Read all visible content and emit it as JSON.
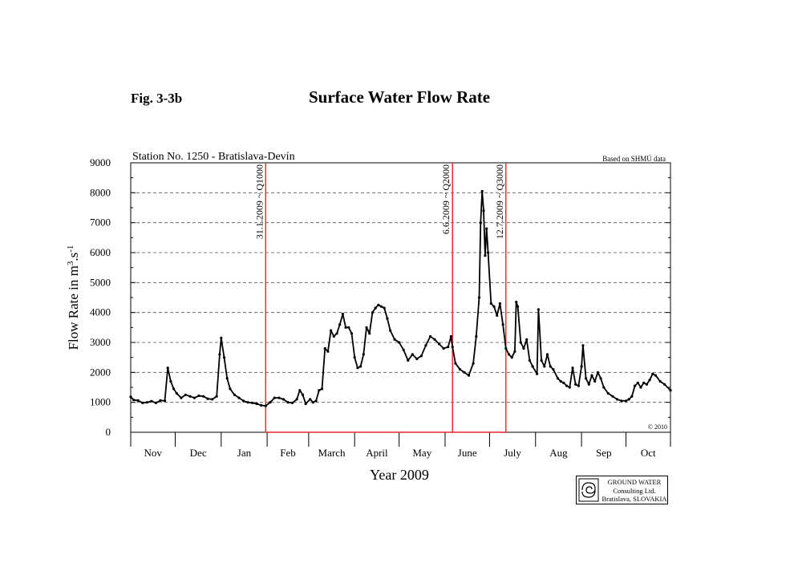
{
  "figure": {
    "label": "Fig. 3-3b",
    "title": "Surface Water Flow Rate"
  },
  "logo": {
    "line1": "GROUND WATER",
    "line2": "Consulting Ltd.",
    "line3": "Bratislava, SLOVAKIA"
  },
  "chart_data": {
    "type": "line",
    "title": "Station No. 1250 - Bratislava-Devín",
    "source_note": "Based on SHMÚ data",
    "copyright": "© 2010",
    "xlabel": "Year 2009",
    "ylabel_parts": [
      "Flow Rate in m",
      "3",
      ".s",
      "-1"
    ],
    "ylim": [
      0,
      9000
    ],
    "yticks": [
      0,
      1000,
      2000,
      3000,
      4000,
      5000,
      6000,
      7000,
      8000,
      9000
    ],
    "x_range": [
      "2008-11-01",
      "2009-10-31"
    ],
    "months": [
      "Nov",
      "Dec",
      "Jan",
      "Feb",
      "March",
      "April",
      "May",
      "June",
      "July",
      "Aug",
      "Sep",
      "Oct"
    ],
    "grid": "horizontal dashed",
    "line_color": "#000000",
    "marker_line_color": "#e3262b",
    "event_lines": [
      {
        "date": "2009-01-31",
        "label": "31.1.2009 ~ Q1000"
      },
      {
        "date": "2009-06-06",
        "label": "6.6.2009 ~ Q2000"
      },
      {
        "date": "2009-07-12",
        "label": "12.7.2009 ~ Q3000"
      }
    ],
    "series": [
      {
        "points": [
          [
            "2008-11-01",
            1180
          ],
          [
            "2008-11-03",
            1080
          ],
          [
            "2008-11-06",
            1060
          ],
          [
            "2008-11-09",
            980
          ],
          [
            "2008-11-12",
            1000
          ],
          [
            "2008-11-15",
            1040
          ],
          [
            "2008-11-18",
            980
          ],
          [
            "2008-11-21",
            1060
          ],
          [
            "2008-11-24",
            1050
          ],
          [
            "2008-11-26",
            2150
          ],
          [
            "2008-11-28",
            1700
          ],
          [
            "2008-11-30",
            1450
          ],
          [
            "2008-12-02",
            1300
          ],
          [
            "2008-12-05",
            1150
          ],
          [
            "2008-12-08",
            1250
          ],
          [
            "2008-12-11",
            1200
          ],
          [
            "2008-12-14",
            1150
          ],
          [
            "2008-12-17",
            1220
          ],
          [
            "2008-12-20",
            1200
          ],
          [
            "2008-12-23",
            1120
          ],
          [
            "2008-12-26",
            1100
          ],
          [
            "2008-12-29",
            1200
          ],
          [
            "2008-12-31",
            2600
          ],
          [
            "2009-01-01",
            3150
          ],
          [
            "2009-01-03",
            2500
          ],
          [
            "2009-01-05",
            1800
          ],
          [
            "2009-01-07",
            1450
          ],
          [
            "2009-01-10",
            1250
          ],
          [
            "2009-01-13",
            1150
          ],
          [
            "2009-01-16",
            1050
          ],
          [
            "2009-01-19",
            1000
          ],
          [
            "2009-01-22",
            980
          ],
          [
            "2009-01-25",
            950
          ],
          [
            "2009-01-28",
            900
          ],
          [
            "2009-01-31",
            880
          ],
          [
            "2009-02-03",
            1000
          ],
          [
            "2009-02-06",
            1150
          ],
          [
            "2009-02-09",
            1150
          ],
          [
            "2009-02-12",
            1100
          ],
          [
            "2009-02-15",
            1000
          ],
          [
            "2009-02-18",
            980
          ],
          [
            "2009-02-21",
            1100
          ],
          [
            "2009-02-23",
            1400
          ],
          [
            "2009-02-25",
            1250
          ],
          [
            "2009-02-27",
            950
          ],
          [
            "2009-03-02",
            1100
          ],
          [
            "2009-03-04",
            1000
          ],
          [
            "2009-03-06",
            1050
          ],
          [
            "2009-03-08",
            1400
          ],
          [
            "2009-03-10",
            1450
          ],
          [
            "2009-03-12",
            2800
          ],
          [
            "2009-03-14",
            2700
          ],
          [
            "2009-03-16",
            3400
          ],
          [
            "2009-03-18",
            3200
          ],
          [
            "2009-03-20",
            3300
          ],
          [
            "2009-03-22",
            3600
          ],
          [
            "2009-03-24",
            3950
          ],
          [
            "2009-03-26",
            3500
          ],
          [
            "2009-03-28",
            3500
          ],
          [
            "2009-03-30",
            3300
          ],
          [
            "2009-04-01",
            2500
          ],
          [
            "2009-04-03",
            2150
          ],
          [
            "2009-04-05",
            2200
          ],
          [
            "2009-04-07",
            2600
          ],
          [
            "2009-04-09",
            3500
          ],
          [
            "2009-04-11",
            3300
          ],
          [
            "2009-04-13",
            4000
          ],
          [
            "2009-04-15",
            4150
          ],
          [
            "2009-04-17",
            4250
          ],
          [
            "2009-04-19",
            4200
          ],
          [
            "2009-04-21",
            4150
          ],
          [
            "2009-04-23",
            3800
          ],
          [
            "2009-04-25",
            3400
          ],
          [
            "2009-04-28",
            3100
          ],
          [
            "2009-05-01",
            3000
          ],
          [
            "2009-05-04",
            2750
          ],
          [
            "2009-05-07",
            2400
          ],
          [
            "2009-05-10",
            2600
          ],
          [
            "2009-05-13",
            2450
          ],
          [
            "2009-05-16",
            2550
          ],
          [
            "2009-05-19",
            2900
          ],
          [
            "2009-05-22",
            3200
          ],
          [
            "2009-05-25",
            3100
          ],
          [
            "2009-05-28",
            2950
          ],
          [
            "2009-05-31",
            2800
          ],
          [
            "2009-06-03",
            2850
          ],
          [
            "2009-06-05",
            3200
          ],
          [
            "2009-06-06",
            2850
          ],
          [
            "2009-06-08",
            2300
          ],
          [
            "2009-06-11",
            2100
          ],
          [
            "2009-06-14",
            2000
          ],
          [
            "2009-06-17",
            1900
          ],
          [
            "2009-06-20",
            2300
          ],
          [
            "2009-06-22",
            3200
          ],
          [
            "2009-06-24",
            4500
          ],
          [
            "2009-06-25",
            7000
          ],
          [
            "2009-06-26",
            8050
          ],
          [
            "2009-06-27",
            7400
          ],
          [
            "2009-06-28",
            5900
          ],
          [
            "2009-06-29",
            6800
          ],
          [
            "2009-06-30",
            6000
          ],
          [
            "2009-07-02",
            4300
          ],
          [
            "2009-07-04",
            4200
          ],
          [
            "2009-07-06",
            3900
          ],
          [
            "2009-07-08",
            4300
          ],
          [
            "2009-07-10",
            3600
          ],
          [
            "2009-07-12",
            2800
          ],
          [
            "2009-07-14",
            2600
          ],
          [
            "2009-07-16",
            2500
          ],
          [
            "2009-07-18",
            2700
          ],
          [
            "2009-07-19",
            4350
          ],
          [
            "2009-07-20",
            4200
          ],
          [
            "2009-07-22",
            3000
          ],
          [
            "2009-07-24",
            2800
          ],
          [
            "2009-07-26",
            3100
          ],
          [
            "2009-07-28",
            2400
          ],
          [
            "2009-07-30",
            2200
          ],
          [
            "2009-08-02",
            1950
          ],
          [
            "2009-08-03",
            4100
          ],
          [
            "2009-08-05",
            2400
          ],
          [
            "2009-08-07",
            2200
          ],
          [
            "2009-08-09",
            2600
          ],
          [
            "2009-08-11",
            2200
          ],
          [
            "2009-08-13",
            2100
          ],
          [
            "2009-08-16",
            1800
          ],
          [
            "2009-08-18",
            1700
          ],
          [
            "2009-08-20",
            1650
          ],
          [
            "2009-08-22",
            1550
          ],
          [
            "2009-08-24",
            1500
          ],
          [
            "2009-08-26",
            2150
          ],
          [
            "2009-08-28",
            1600
          ],
          [
            "2009-08-30",
            1550
          ],
          [
            "2009-09-01",
            2200
          ],
          [
            "2009-09-02",
            2900
          ],
          [
            "2009-09-04",
            1800
          ],
          [
            "2009-09-06",
            1600
          ],
          [
            "2009-09-08",
            1900
          ],
          [
            "2009-09-10",
            1700
          ],
          [
            "2009-09-12",
            2000
          ],
          [
            "2009-09-14",
            1800
          ],
          [
            "2009-09-16",
            1500
          ],
          [
            "2009-09-19",
            1300
          ],
          [
            "2009-09-22",
            1200
          ],
          [
            "2009-09-25",
            1100
          ],
          [
            "2009-09-28",
            1050
          ],
          [
            "2009-10-01",
            1050
          ],
          [
            "2009-10-03",
            1100
          ],
          [
            "2009-10-05",
            1200
          ],
          [
            "2009-10-07",
            1550
          ],
          [
            "2009-10-09",
            1650
          ],
          [
            "2009-10-11",
            1500
          ],
          [
            "2009-10-13",
            1650
          ],
          [
            "2009-10-15",
            1600
          ],
          [
            "2009-10-17",
            1750
          ],
          [
            "2009-10-19",
            1950
          ],
          [
            "2009-10-21",
            1900
          ],
          [
            "2009-10-24",
            1700
          ],
          [
            "2009-10-27",
            1600
          ],
          [
            "2009-10-31",
            1400
          ]
        ]
      }
    ]
  }
}
